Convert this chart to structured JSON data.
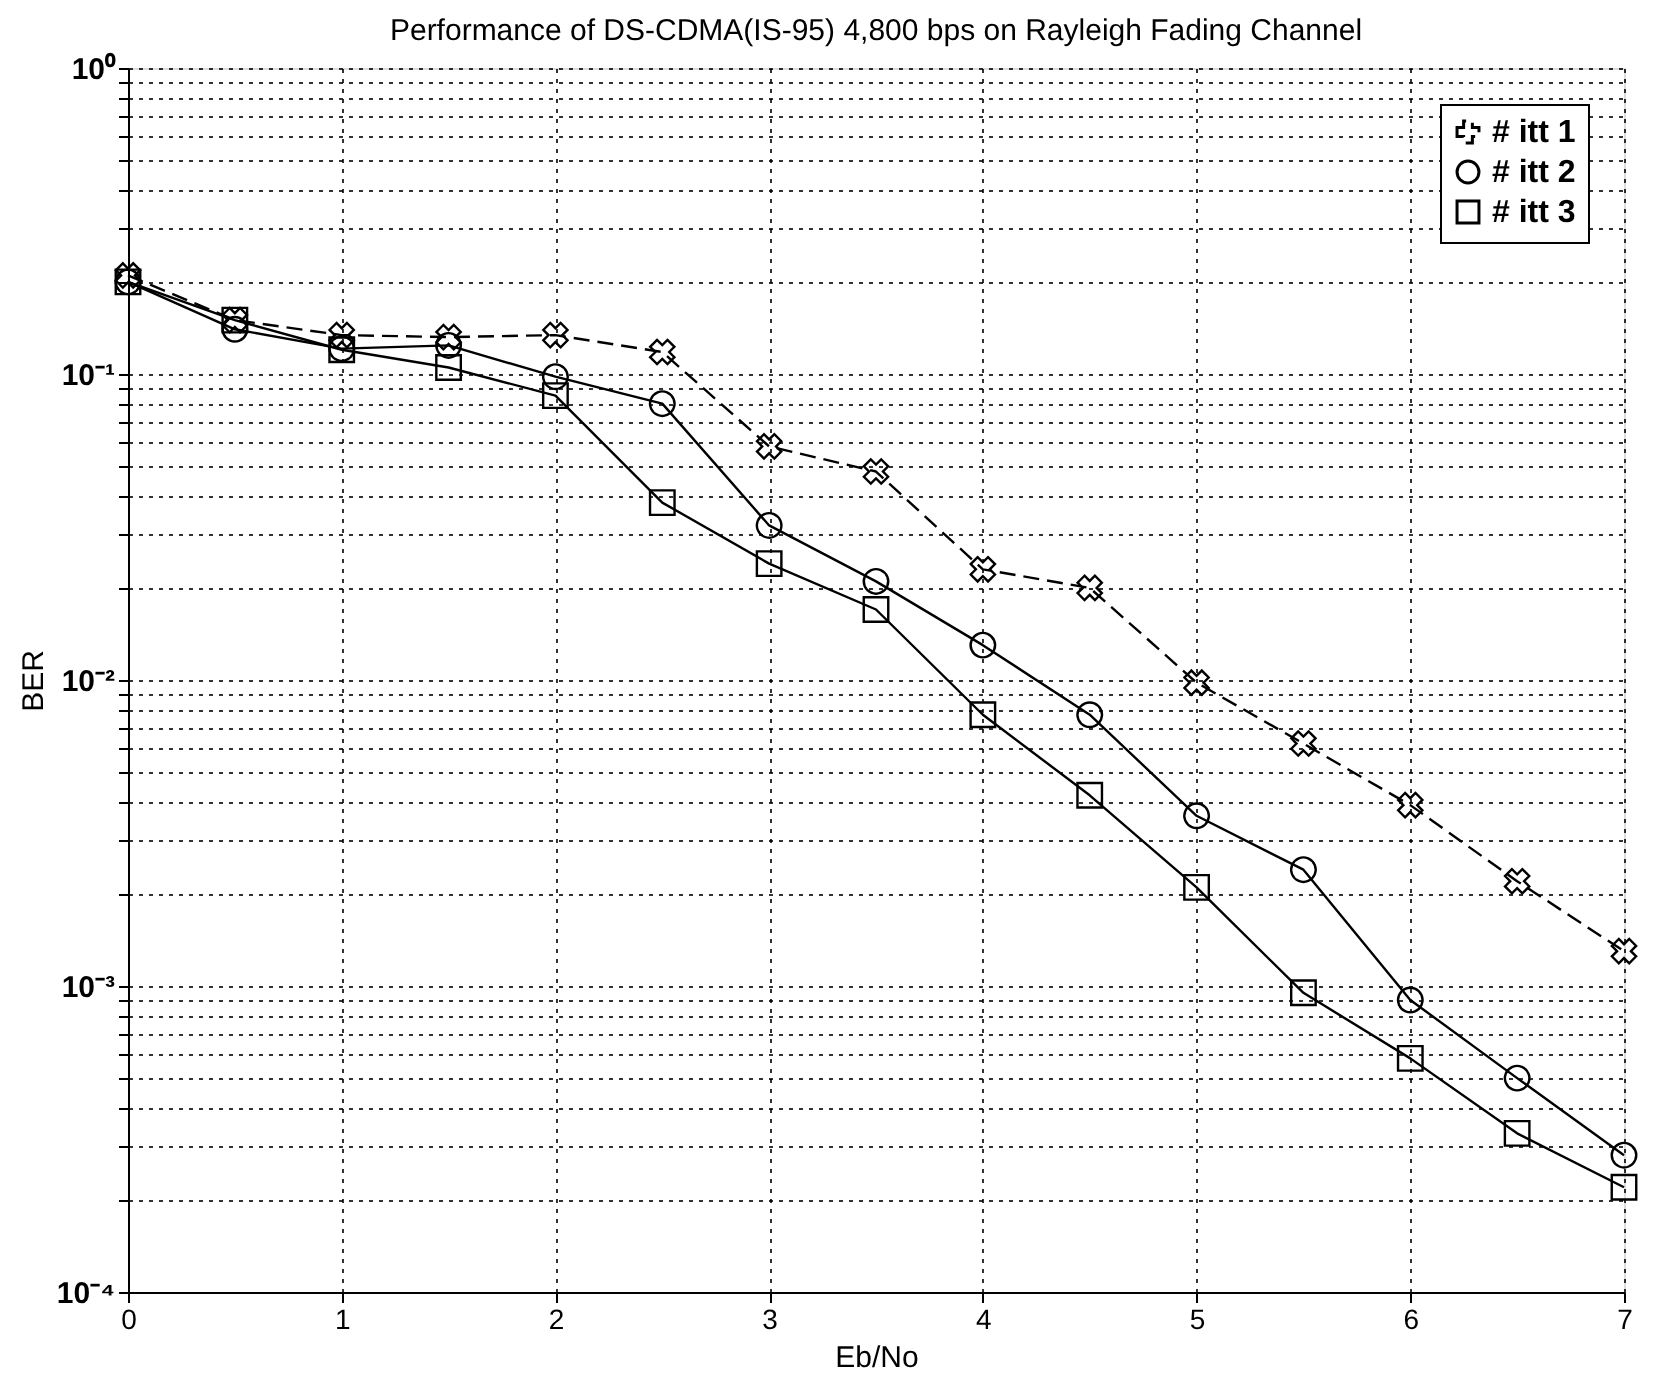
{
  "chart_data": {
    "type": "line",
    "title": "Performance of DS-CDMA(IS-95) 4,800 bps on Rayleigh Fading Channel",
    "xlabel": "Eb/No",
    "ylabel": "BER",
    "x": [
      0,
      0.5,
      1,
      1.5,
      2,
      2.5,
      3,
      3.5,
      4,
      4.5,
      5,
      5.5,
      6,
      6.5,
      7
    ],
    "series": [
      {
        "name": "# itt 1",
        "color": "#000000",
        "marker": "cross",
        "line_style": "dashed",
        "values": [
          0.21,
          0.15,
          0.134,
          0.132,
          0.134,
          0.118,
          0.058,
          0.048,
          0.023,
          0.02,
          0.0098,
          0.0062,
          0.0039,
          0.0022,
          0.0013
        ]
      },
      {
        "name": "# itt 2",
        "color": "#000000",
        "marker": "circle",
        "line_style": "solid",
        "values": [
          0.2,
          0.14,
          0.121,
          0.124,
          0.098,
          0.08,
          0.032,
          0.021,
          0.013,
          0.0077,
          0.0036,
          0.0024,
          0.0009,
          0.0005,
          0.00028
        ]
      },
      {
        "name": "# itt 3",
        "color": "#000000",
        "marker": "square",
        "line_style": "solid",
        "values": [
          0.2,
          0.15,
          0.12,
          0.105,
          0.085,
          0.038,
          0.024,
          0.017,
          0.0077,
          0.0042,
          0.0021,
          0.00095,
          0.00058,
          0.00033,
          0.00022
        ]
      }
    ],
    "log": "y",
    "xlim": [
      0,
      7
    ],
    "xticks": [
      0,
      1,
      2,
      3,
      4,
      5,
      6,
      7
    ],
    "ylim": [
      0.0001,
      1
    ],
    "yticks": [
      {
        "value": 0.0001,
        "label": "10⁻⁴"
      },
      {
        "value": 0.0002,
        "label": null
      },
      {
        "value": 0.0003,
        "label": null
      },
      {
        "value": 0.0004,
        "label": null
      },
      {
        "value": 0.0005,
        "label": null
      },
      {
        "value": 0.0006,
        "label": null
      },
      {
        "value": 0.0007,
        "label": null
      },
      {
        "value": 0.0008,
        "label": null
      },
      {
        "value": 0.0009,
        "label": null
      },
      {
        "value": 0.001,
        "label": "10⁻³"
      },
      {
        "value": 0.002,
        "label": null
      },
      {
        "value": 0.003,
        "label": null
      },
      {
        "value": 0.004,
        "label": null
      },
      {
        "value": 0.005,
        "label": null
      },
      {
        "value": 0.006,
        "label": null
      },
      {
        "value": 0.007,
        "label": null
      },
      {
        "value": 0.008,
        "label": null
      },
      {
        "value": 0.009,
        "label": null
      },
      {
        "value": 0.01,
        "label": "10⁻²"
      },
      {
        "value": 0.02,
        "label": null
      },
      {
        "value": 0.03,
        "label": null
      },
      {
        "value": 0.04,
        "label": null
      },
      {
        "value": 0.05,
        "label": null
      },
      {
        "value": 0.06,
        "label": null
      },
      {
        "value": 0.07,
        "label": null
      },
      {
        "value": 0.08,
        "label": null
      },
      {
        "value": 0.09,
        "label": null
      },
      {
        "value": 0.1,
        "label": "10⁻¹"
      },
      {
        "value": 0.2,
        "label": null
      },
      {
        "value": 0.3,
        "label": null
      },
      {
        "value": 0.4,
        "label": null
      },
      {
        "value": 0.5,
        "label": null
      },
      {
        "value": 0.6,
        "label": null
      },
      {
        "value": 0.7,
        "label": null
      },
      {
        "value": 0.8,
        "label": null
      },
      {
        "value": 0.9,
        "label": null
      },
      {
        "value": 1,
        "label": "10⁰"
      }
    ],
    "grid": true,
    "legend": "top right"
  }
}
